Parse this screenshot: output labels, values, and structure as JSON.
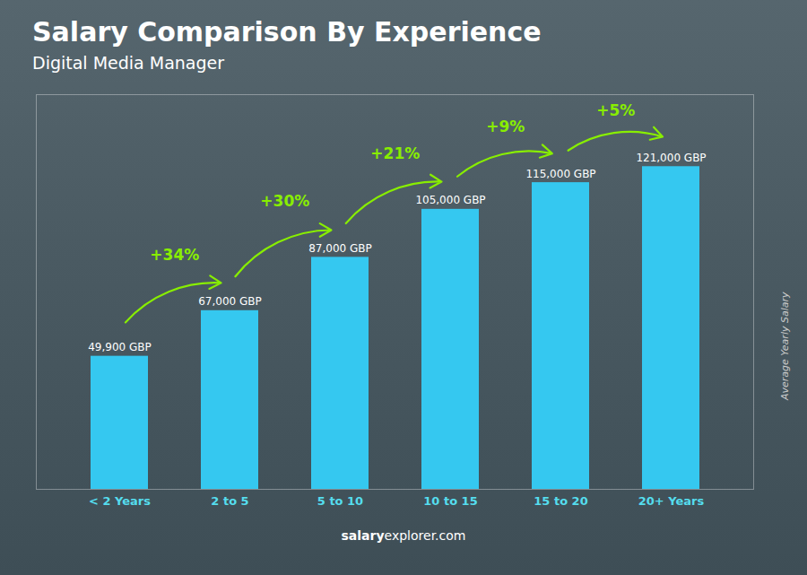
{
  "chart_data": {
    "type": "bar",
    "title": "Salary Comparison By Experience",
    "subtitle": "Digital Media Manager",
    "categories": [
      "< 2 Years",
      "2 to 5",
      "5 to 10",
      "10 to 15",
      "15 to 20",
      "20+ Years"
    ],
    "values": [
      49900,
      67000,
      87000,
      105000,
      115000,
      121000
    ],
    "value_labels": [
      "49,900 GBP",
      "67,000 GBP",
      "87,000 GBP",
      "105,000 GBP",
      "115,000 GBP",
      "121,000 GBP"
    ],
    "data_labels": true,
    "color": "#35c8f0",
    "ylim": [
      0,
      148000
    ],
    "ylabel": "Average Yearly Salary",
    "tick_labels": "x",
    "grid": false,
    "annotations": [
      {
        "text": "+34%",
        "from": "< 2 Years",
        "to": "2 to 5",
        "color": "#88ee00"
      },
      {
        "text": "+30%",
        "from": "2 to 5",
        "to": "5 to 10",
        "color": "#88ee00"
      },
      {
        "text": "+21%",
        "from": "5 to 10",
        "to": "10 to 15",
        "color": "#88ee00"
      },
      {
        "text": "+9%",
        "from": "10 to 15",
        "to": "15 to 20",
        "color": "#88ee00"
      },
      {
        "text": "+5%",
        "from": "15 to 20",
        "to": "20+ Years",
        "color": "#88ee00"
      }
    ],
    "caption": [
      "salary",
      "explorer.com"
    ]
  }
}
